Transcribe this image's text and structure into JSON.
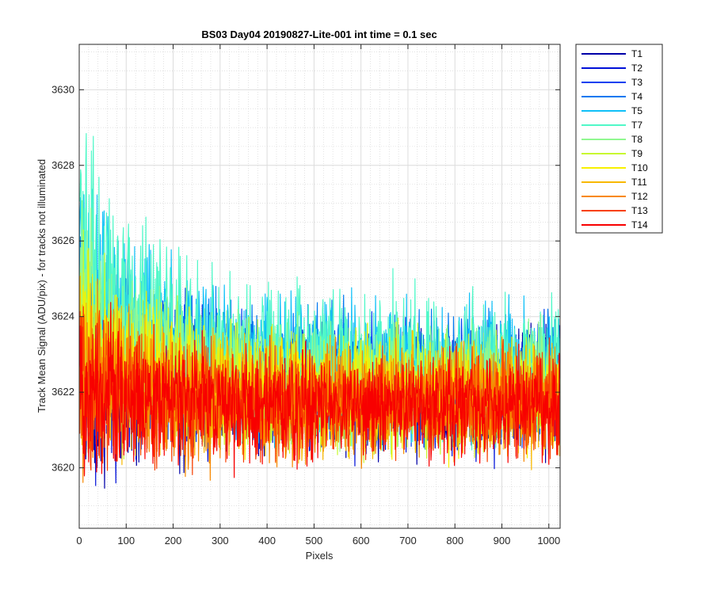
{
  "chart_data": {
    "type": "line",
    "title": "BS03 Day04 20190827-Lite-001 int time = 0.1 sec",
    "xlabel": "Pixels",
    "ylabel": "Track Mean Signal (ADU/pix) - for tracks not illuminated",
    "xlim": [
      0,
      1024
    ],
    "ylim": [
      3618.4,
      3631.2
    ],
    "xticks": [
      0,
      100,
      200,
      300,
      400,
      500,
      600,
      700,
      800,
      900,
      1000
    ],
    "yticks": [
      3620,
      3622,
      3624,
      3626,
      3628,
      3630
    ],
    "grid": true,
    "minor_grid": true,
    "legend_position": "outside-top-right",
    "series": [
      {
        "name": "T1",
        "color": "#0000a8",
        "base_early": 3622.4,
        "base_late": 3622.1,
        "amplitude": 1.5
      },
      {
        "name": "T2",
        "color": "#0010d8",
        "base_early": 3622.5,
        "base_late": 3622.1,
        "amplitude": 1.5
      },
      {
        "name": "T3",
        "color": "#0040f0",
        "base_early": 3623.0,
        "base_late": 3622.2,
        "amplitude": 1.5
      },
      {
        "name": "T4",
        "color": "#0078f0",
        "base_early": 3624.5,
        "base_late": 3622.4,
        "amplitude": 1.6
      },
      {
        "name": "T5",
        "color": "#10c0f8",
        "base_early": 3625.4,
        "base_late": 3622.6,
        "amplitude": 1.7
      },
      {
        "name": "T7",
        "color": "#50f8c8",
        "base_early": 3626.0,
        "base_late": 3622.6,
        "amplitude": 1.8
      },
      {
        "name": "T8",
        "color": "#90f890",
        "base_early": 3624.2,
        "base_late": 3622.2,
        "amplitude": 1.5
      },
      {
        "name": "T9",
        "color": "#c8f830",
        "base_early": 3623.6,
        "base_late": 3622.0,
        "amplitude": 1.4
      },
      {
        "name": "T10",
        "color": "#f8f000",
        "base_early": 3623.0,
        "base_late": 3621.9,
        "amplitude": 1.4
      },
      {
        "name": "T11",
        "color": "#f8b800",
        "base_early": 3622.6,
        "base_late": 3621.8,
        "amplitude": 1.4
      },
      {
        "name": "T12",
        "color": "#f88800",
        "base_early": 3622.4,
        "base_late": 3621.7,
        "amplitude": 1.4
      },
      {
        "name": "T13",
        "color": "#f84000",
        "base_early": 3622.2,
        "base_late": 3621.7,
        "amplitude": 1.3
      },
      {
        "name": "T14",
        "color": "#f80000",
        "base_early": 3622.0,
        "base_late": 3621.6,
        "amplitude": 1.3
      }
    ]
  }
}
